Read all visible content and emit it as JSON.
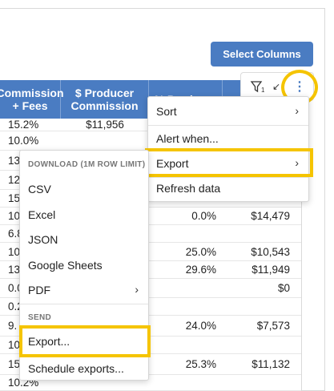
{
  "toolbar": {
    "select_columns_label": "Select Columns",
    "filter_icon": "filter-icon",
    "filter_badge": "1",
    "collapse_icon": "arrows-in-icon",
    "more_icon": "vertical-ellipsis-icon"
  },
  "table": {
    "headers": [
      "Commission + Fees",
      "$ Producer Commission",
      "% Producer",
      ""
    ],
    "rows": [
      [
        "15.2%",
        "$11,956",
        "",
        ""
      ],
      [
        "10.0%",
        "",
        "",
        ""
      ],
      [
        "13.",
        "",
        "",
        ""
      ],
      [
        "12.",
        "",
        "",
        ""
      ],
      [
        "15.",
        "",
        "",
        ""
      ],
      [
        "10.",
        "",
        "0.0%",
        "$14,479"
      ],
      [
        "6.8",
        "",
        "",
        ""
      ],
      [
        "10.",
        "",
        "25.0%",
        "$10,543"
      ],
      [
        "13.",
        "",
        "29.6%",
        "$11,949"
      ],
      [
        "0.0",
        "",
        "",
        "$0"
      ],
      [
        "0.2",
        "",
        "",
        ""
      ],
      [
        "9.",
        "",
        "24.0%",
        "$7,573"
      ],
      [
        "10.",
        "",
        "",
        ""
      ],
      [
        "15.",
        "",
        "25.3%",
        "$11,132"
      ],
      [
        "10.2%",
        "",
        "",
        ""
      ]
    ]
  },
  "context_menu": {
    "items": [
      {
        "label": "Sort",
        "has_submenu": true
      },
      {
        "label": "Alert when...",
        "has_submenu": false
      },
      {
        "label": "Export",
        "has_submenu": true
      },
      {
        "label": "Refresh data",
        "has_submenu": false
      }
    ]
  },
  "export_menu": {
    "section_download": "DOWNLOAD (1M ROW LIMIT)",
    "download_items": [
      {
        "label": "CSV",
        "has_submenu": false
      },
      {
        "label": "Excel",
        "has_submenu": false
      },
      {
        "label": "JSON",
        "has_submenu": false
      },
      {
        "label": "Google Sheets",
        "has_submenu": false
      },
      {
        "label": "PDF",
        "has_submenu": true
      }
    ],
    "section_send": "SEND",
    "send_items": [
      {
        "label": "Export...",
        "has_submenu": false
      },
      {
        "label": "Schedule exports...",
        "has_submenu": false
      }
    ]
  },
  "colors": {
    "header_blue": "#4a7cc2",
    "highlight_yellow": "#f5c400"
  }
}
